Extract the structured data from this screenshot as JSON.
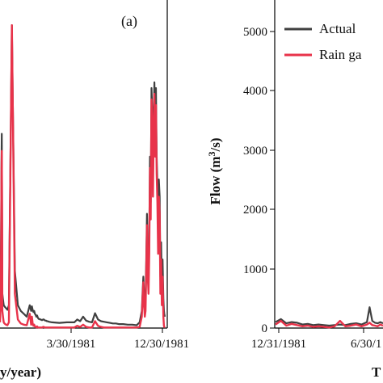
{
  "chart_data": [
    {
      "type": "line",
      "panel_label": "(a)",
      "xlabel": "y/year)",
      "ylabel": "",
      "x_tick_labels": [
        "3/30/1981",
        "12/30/1981"
      ],
      "ylim": [
        0,
        5600
      ],
      "grid": false,
      "series": [
        {
          "name": "Actual",
          "color": "#404040",
          "x": [
            0,
            4,
            8,
            10,
            12,
            14,
            15,
            16,
            20,
            25,
            30,
            40,
            50,
            60,
            80,
            100,
            120,
            140,
            160,
            180,
            200,
            210,
            215,
            220,
            225,
            230,
            235,
            240,
            245,
            250,
            255,
            260,
            265,
            270,
            275,
            280,
            285,
            290,
            295,
            300,
            305,
            310,
            315,
            320,
            330,
            350,
            400,
            450,
            500,
            520,
            540,
            560,
            580,
            600,
            620,
            640,
            660,
            680,
            700,
            720,
            740,
            760,
            780,
            800,
            830,
            860,
            890,
            920,
            940,
            955,
            960,
            965,
            970,
            975,
            980,
            985,
            990,
            995,
            1000,
            1005,
            1010,
            1015,
            1020,
            1025,
            1030,
            1035,
            1040,
            1045,
            1050,
            1055,
            1060,
            1065,
            1070,
            1075,
            1080,
            1085,
            1090,
            1095,
            1100,
            1104,
            1106,
            1110
          ],
          "y": [
            300,
            600,
            2000,
            2800,
            3400,
            2000,
            1200,
            600,
            500,
            400,
            380,
            350,
            320,
            400,
            5300,
            1000,
            400,
            300,
            250,
            200,
            400,
            300,
            380,
            320,
            280,
            300,
            250,
            230,
            200,
            220,
            180,
            160,
            160,
            150,
            150,
            140,
            140,
            150,
            150,
            140,
            130,
            130,
            120,
            120,
            110,
            100,
            90,
            100,
            100,
            150,
            120,
            200,
            130,
            110,
            100,
            260,
            150,
            120,
            110,
            100,
            90,
            80,
            80,
            70,
            70,
            60,
            60,
            50,
            100,
            300,
            600,
            900,
            600,
            400,
            500,
            1200,
            2000,
            1100,
            800,
            1500,
            3000,
            2200,
            4200,
            3800,
            2600,
            3700,
            4300,
            3300,
            4200,
            3000,
            2500,
            1600,
            2600,
            2300,
            900,
            1500,
            700,
            1200,
            500,
            300,
            250,
            200
          ]
        },
        {
          "name": "Rain ga",
          "color": "#e8334a",
          "x": [
            0,
            4,
            8,
            10,
            12,
            14,
            15,
            16,
            20,
            25,
            30,
            40,
            50,
            60,
            80,
            100,
            120,
            140,
            160,
            180,
            200,
            210,
            215,
            220,
            225,
            230,
            235,
            240,
            245,
            250,
            255,
            260,
            265,
            270,
            275,
            280,
            285,
            290,
            295,
            300,
            305,
            310,
            315,
            320,
            330,
            350,
            400,
            450,
            500,
            520,
            540,
            560,
            580,
            600,
            620,
            640,
            660,
            680,
            700,
            720,
            740,
            760,
            780,
            800,
            830,
            860,
            890,
            920,
            940,
            955,
            960,
            965,
            970,
            975,
            980,
            985,
            990,
            995,
            1000,
            1005,
            1010,
            1015,
            1020,
            1025,
            1030,
            1035,
            1040,
            1045,
            1050,
            1055,
            1060,
            1065,
            1070,
            1075,
            1080,
            1085,
            1090,
            1095,
            1100,
            1104,
            1106,
            1110
          ],
          "y": [
            100,
            400,
            1600,
            2600,
            3100,
            1800,
            800,
            300,
            200,
            100,
            80,
            60,
            50,
            100,
            5300,
            600,
            150,
            80,
            60,
            50,
            250,
            60,
            200,
            80,
            40,
            60,
            30,
            20,
            10,
            30,
            10,
            10,
            10,
            10,
            10,
            10,
            10,
            20,
            20,
            10,
            10,
            10,
            10,
            10,
            10,
            10,
            10,
            10,
            10,
            40,
            20,
            60,
            20,
            10,
            10,
            120,
            40,
            20,
            10,
            10,
            10,
            10,
            10,
            10,
            10,
            10,
            10,
            10,
            20,
            200,
            500,
            800,
            400,
            200,
            300,
            1000,
            1800,
            900,
            600,
            1300,
            2800,
            1900,
            4000,
            3600,
            2300,
            3400,
            4100,
            3000,
            3900,
            2700,
            2200,
            1300,
            2300,
            2000,
            600,
            1200,
            400,
            900,
            200,
            40,
            20,
            10
          ]
        }
      ]
    },
    {
      "type": "line",
      "xlabel": "T",
      "ylabel": "Flow (m3/s)",
      "x_tick_labels": [
        "12/31/1981",
        "6/30/1"
      ],
      "y_tick_labels": [
        "0",
        "1000",
        "2000",
        "3000",
        "4000",
        "5000"
      ],
      "ylim": [
        0,
        5500
      ],
      "grid": false,
      "legend_placement": "top-right",
      "series": [
        {
          "name": "Actual",
          "color": "#404040",
          "x": [
            0,
            10,
            20,
            30,
            40,
            50,
            60,
            70,
            80,
            90,
            100,
            110,
            120,
            130,
            140,
            150,
            160,
            170,
            175,
            180,
            185,
            190,
            195,
            200
          ],
          "y": [
            100,
            150,
            80,
            100,
            90,
            60,
            70,
            50,
            60,
            50,
            40,
            50,
            60,
            50,
            70,
            80,
            60,
            100,
            350,
            120,
            90,
            80,
            100,
            80
          ]
        },
        {
          "name": "Rain ga",
          "color": "#e8334a",
          "x": [
            0,
            10,
            20,
            30,
            40,
            50,
            60,
            70,
            80,
            90,
            100,
            110,
            120,
            130,
            140,
            150,
            160,
            170,
            175,
            180,
            185,
            190,
            195,
            200
          ],
          "y": [
            60,
            120,
            40,
            70,
            50,
            30,
            40,
            20,
            30,
            20,
            10,
            30,
            120,
            30,
            40,
            60,
            30,
            60,
            90,
            50,
            40,
            30,
            60,
            40
          ]
        }
      ]
    }
  ]
}
